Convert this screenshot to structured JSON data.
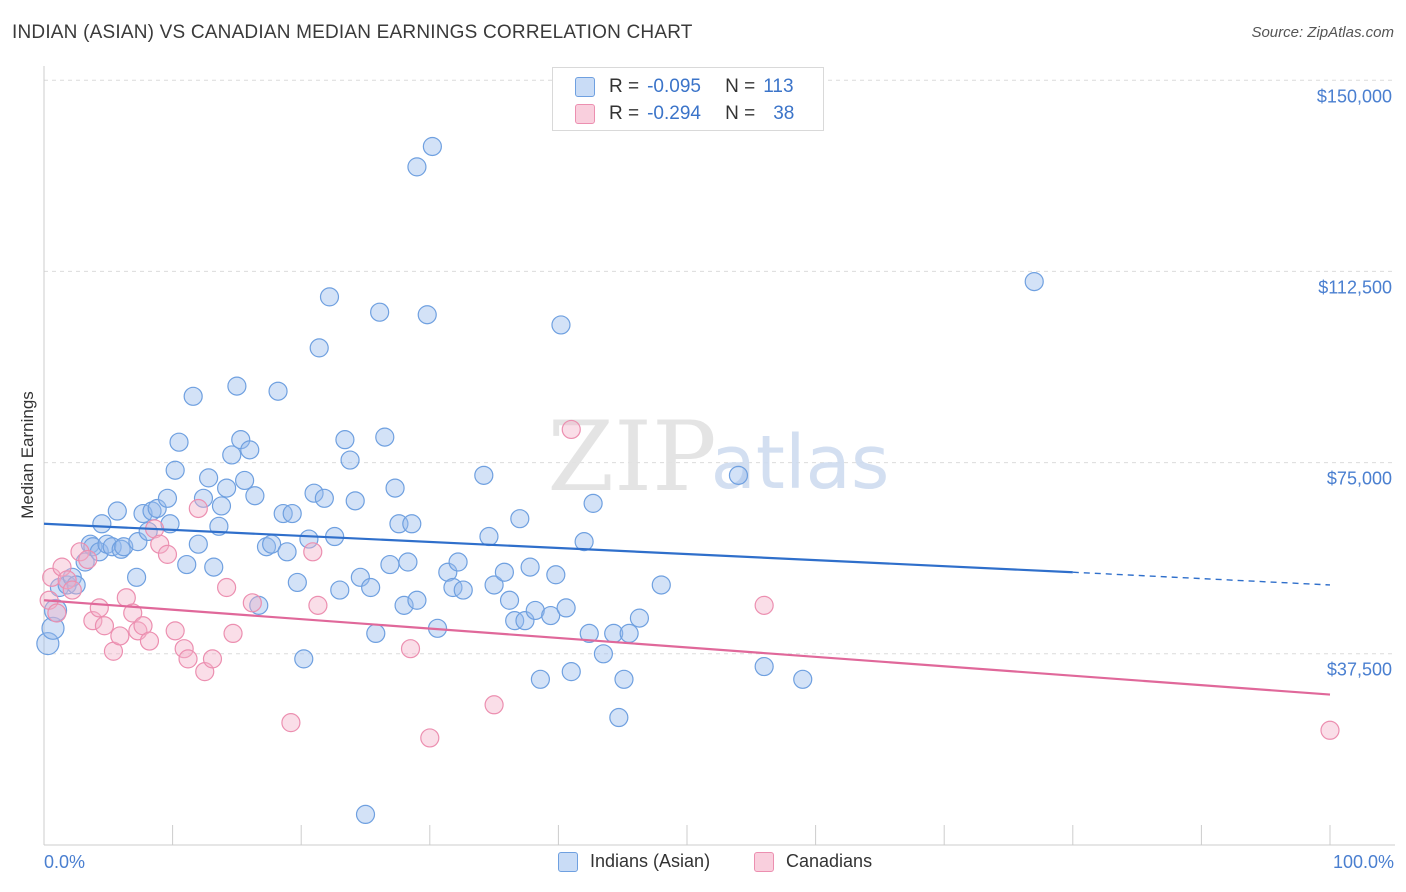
{
  "title": "INDIAN (ASIAN) VS CANADIAN MEDIAN EARNINGS CORRELATION CHART",
  "source": "Source: ZipAtlas.com",
  "watermark": {
    "zip": "ZIP",
    "atlas": "atlas"
  },
  "stats": [
    {
      "r_label": "R =",
      "r_value": "-0.095",
      "n_label": "N =",
      "n_value": "113",
      "color": "#6fa0e0"
    },
    {
      "r_label": "R =",
      "r_value": "-0.294",
      "n_label": "N =",
      "n_value": "38",
      "color": "#ec8fb0"
    }
  ],
  "legend": [
    {
      "label": "Indians (Asian)",
      "color": "#6fa0e0"
    },
    {
      "label": "Canadians",
      "color": "#ec8fb0"
    }
  ],
  "chart_data": {
    "type": "scatter",
    "title": "INDIAN (ASIAN) VS CANADIAN MEDIAN EARNINGS CORRELATION CHART",
    "xlabel": "",
    "ylabel": "Median Earnings",
    "xlim": [
      0,
      100
    ],
    "ylim": [
      0,
      152000
    ],
    "x_tick_labels": [
      "0.0%",
      "100.0%"
    ],
    "y_ticks": [
      {
        "value": 37500,
        "label": "$37,500"
      },
      {
        "value": 75000,
        "label": "$75,000"
      },
      {
        "value": 112500,
        "label": "$112,500"
      },
      {
        "value": 150000,
        "label": "$150,000"
      }
    ],
    "series": [
      {
        "name": "Indians (Asian)",
        "color": "#6fa0e0",
        "trend": {
          "x0": 0,
          "y0": 63000,
          "x1": 80,
          "y1": 53500,
          "x_end": 100,
          "y_end": 51000
        },
        "points": [
          [
            0.3,
            39500
          ],
          [
            0.7,
            42500
          ],
          [
            0.9,
            46000
          ],
          [
            1.2,
            50500
          ],
          [
            1.8,
            51000
          ],
          [
            2.2,
            52500
          ],
          [
            2.5,
            51000
          ],
          [
            3.2,
            55500
          ],
          [
            3.6,
            59000
          ],
          [
            3.8,
            58500
          ],
          [
            4.3,
            57500
          ],
          [
            4.5,
            63000
          ],
          [
            4.9,
            59000
          ],
          [
            5.3,
            58500
          ],
          [
            5.7,
            65500
          ],
          [
            6.0,
            58000
          ],
          [
            6.2,
            58500
          ],
          [
            7.2,
            52500
          ],
          [
            7.3,
            59500
          ],
          [
            7.7,
            65000
          ],
          [
            8.1,
            61500
          ],
          [
            8.4,
            65500
          ],
          [
            8.8,
            66000
          ],
          [
            9.6,
            68000
          ],
          [
            9.8,
            63000
          ],
          [
            10.2,
            73500
          ],
          [
            10.5,
            79000
          ],
          [
            11.1,
            55000
          ],
          [
            11.6,
            88000
          ],
          [
            12.0,
            59000
          ],
          [
            12.4,
            68000
          ],
          [
            12.8,
            72000
          ],
          [
            13.2,
            54500
          ],
          [
            13.6,
            62500
          ],
          [
            13.8,
            66500
          ],
          [
            14.2,
            70000
          ],
          [
            14.6,
            76500
          ],
          [
            15.0,
            90000
          ],
          [
            15.3,
            79500
          ],
          [
            15.6,
            71500
          ],
          [
            16.0,
            77500
          ],
          [
            16.4,
            68500
          ],
          [
            16.7,
            47000
          ],
          [
            17.3,
            58500
          ],
          [
            17.7,
            59000
          ],
          [
            18.2,
            89000
          ],
          [
            18.6,
            65000
          ],
          [
            18.9,
            57500
          ],
          [
            19.3,
            65000
          ],
          [
            19.7,
            51500
          ],
          [
            20.2,
            36500
          ],
          [
            20.6,
            60000
          ],
          [
            21.0,
            69000
          ],
          [
            21.4,
            97500
          ],
          [
            21.8,
            68000
          ],
          [
            22.2,
            107500
          ],
          [
            22.6,
            60500
          ],
          [
            23.0,
            50000
          ],
          [
            23.4,
            79500
          ],
          [
            23.8,
            75500
          ],
          [
            24.2,
            67500
          ],
          [
            24.6,
            52500
          ],
          [
            25.0,
            6000
          ],
          [
            25.4,
            50500
          ],
          [
            25.8,
            41500
          ],
          [
            26.1,
            104500
          ],
          [
            26.5,
            80000
          ],
          [
            26.9,
            55000
          ],
          [
            27.3,
            70000
          ],
          [
            27.6,
            63000
          ],
          [
            28.0,
            47000
          ],
          [
            28.3,
            55500
          ],
          [
            28.6,
            63000
          ],
          [
            29.0,
            48000
          ],
          [
            29.8,
            104000
          ],
          [
            30.2,
            137000
          ],
          [
            30.6,
            42500
          ],
          [
            29.0,
            133000
          ],
          [
            31.4,
            53500
          ],
          [
            31.8,
            50500
          ],
          [
            32.2,
            55500
          ],
          [
            32.6,
            50000
          ],
          [
            34.2,
            72500
          ],
          [
            34.6,
            60500
          ],
          [
            35.0,
            51000
          ],
          [
            35.8,
            53500
          ],
          [
            36.2,
            48000
          ],
          [
            36.6,
            44000
          ],
          [
            37.0,
            64000
          ],
          [
            37.4,
            44000
          ],
          [
            37.8,
            54500
          ],
          [
            38.2,
            46000
          ],
          [
            38.6,
            32500
          ],
          [
            39.4,
            45000
          ],
          [
            39.8,
            53000
          ],
          [
            40.2,
            102000
          ],
          [
            40.6,
            46500
          ],
          [
            41.0,
            34000
          ],
          [
            42.0,
            59500
          ],
          [
            42.4,
            41500
          ],
          [
            42.7,
            67000
          ],
          [
            43.5,
            37500
          ],
          [
            44.3,
            41500
          ],
          [
            44.7,
            25000
          ],
          [
            45.1,
            32500
          ],
          [
            45.5,
            41500
          ],
          [
            46.3,
            44500
          ],
          [
            48.0,
            51000
          ],
          [
            54.0,
            72500
          ],
          [
            56.0,
            35000
          ],
          [
            59.0,
            32500
          ],
          [
            77.0,
            110500
          ]
        ]
      },
      {
        "name": "Canadians",
        "color": "#ec8fb0",
        "trend": {
          "x0": 0,
          "y0": 48000,
          "x1": 100,
          "y1": 29500
        },
        "points": [
          [
            0.4,
            48000
          ],
          [
            0.6,
            52500
          ],
          [
            1.0,
            45500
          ],
          [
            1.4,
            54500
          ],
          [
            1.8,
            52000
          ],
          [
            2.2,
            50000
          ],
          [
            2.8,
            57500
          ],
          [
            3.4,
            56000
          ],
          [
            3.8,
            44000
          ],
          [
            4.3,
            46500
          ],
          [
            4.7,
            43000
          ],
          [
            5.4,
            38000
          ],
          [
            5.9,
            41000
          ],
          [
            6.4,
            48500
          ],
          [
            6.9,
            45500
          ],
          [
            7.3,
            42000
          ],
          [
            7.7,
            43000
          ],
          [
            8.2,
            40000
          ],
          [
            8.6,
            62000
          ],
          [
            9.0,
            59000
          ],
          [
            9.6,
            57000
          ],
          [
            10.2,
            42000
          ],
          [
            10.9,
            38500
          ],
          [
            11.2,
            36500
          ],
          [
            12.0,
            66000
          ],
          [
            12.5,
            34000
          ],
          [
            13.1,
            36500
          ],
          [
            14.2,
            50500
          ],
          [
            14.7,
            41500
          ],
          [
            16.2,
            47500
          ],
          [
            19.2,
            24000
          ],
          [
            20.9,
            57500
          ],
          [
            21.3,
            47000
          ],
          [
            28.5,
            38500
          ],
          [
            30.0,
            21000
          ],
          [
            35.0,
            27500
          ],
          [
            41.0,
            81500
          ],
          [
            56.0,
            47000
          ],
          [
            100.0,
            22500
          ]
        ]
      }
    ]
  }
}
